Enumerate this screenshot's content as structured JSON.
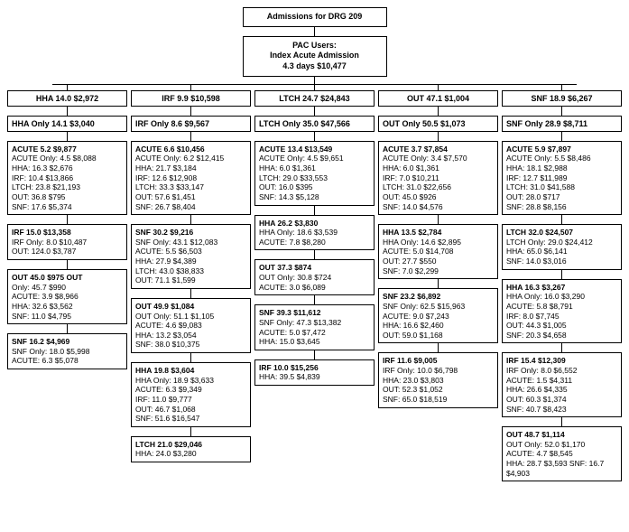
{
  "root": "Admissions for DRG 209",
  "pac": "PAC Users:\nIndex Acute Admission\n4.3 days $10,477",
  "columns": [
    {
      "head": "HHA 14.0 $2,972",
      "only": "HHA Only 14.1 $3,040",
      "boxes": [
        {
          "hdr": "ACUTE 5.2 $9,877",
          "lines": [
            "ACUTE Only: 4.5 $8,088",
            "HHA: 16.3 $2,676",
            "IRF: 10.4 $13,866",
            "LTCH: 23.8 $21,193",
            "OUT: 36.8 $795",
            "SNF: 17.6 $5,374"
          ]
        },
        {
          "hdr": "IRF 15.0 $13,358",
          "lines": [
            "IRF Only: 8.0 $10,487",
            "OUT: 124.0 $3,787"
          ]
        },
        {
          "hdr": "OUT 45.0 $975 OUT",
          "lines": [
            "Only: 45.7 $990",
            "ACUTE: 3.9 $8,966",
            "HHA: 32.6 $3,562",
            "SNF: 11.0 $4,795"
          ]
        },
        {
          "hdr": "SNF 16.2 $4,969",
          "lines": [
            "SNF Only: 18.0 $5,998",
            "ACUTE: 6.3 $5,078"
          ]
        }
      ]
    },
    {
      "head": "IRF 9.9 $10,598",
      "only": "IRF Only 8.6 $9,567",
      "boxes": [
        {
          "hdr": "ACUTE 6.6 $10,456",
          "lines": [
            "ACUTE Only: 6.2 $12,415",
            "HHA: 21.7 $3,184",
            "IRF: 12.6 $12,908",
            "LTCH: 33.3 $33,147",
            "OUT: 57.6 $1,451",
            "SNF: 26.7 $8,404"
          ]
        },
        {
          "hdr": "SNF 30.2 $9,216",
          "lines": [
            "SNF Only: 43.1 $12,083",
            "ACUTE: 5.5 $6,503",
            "HHA: 27.9 $4,389",
            "LTCH: 43.0 $38,833",
            "OUT: 71.1 $1,599"
          ]
        },
        {
          "hdr": "OUT 49.9 $1,084",
          "lines": [
            "OUT Only: 51.1 $1,105",
            "ACUTE: 4.6 $9,083",
            "HHA: 13.2 $3,054",
            "SNF: 38.0 $10,375"
          ]
        },
        {
          "hdr": "HHA 19.8 $3,604",
          "lines": [
            "HHA Only: 18.9 $3,633",
            "ACUTE: 6.3 $9,349",
            "IRF: 11.0 $9,777",
            "OUT: 46.7 $1,068",
            "SNF: 51.6 $16,547"
          ]
        },
        {
          "hdr": "LTCH 21.0 $29,046",
          "lines": [
            "HHA: 24.0 $3,280"
          ]
        }
      ]
    },
    {
      "head": "LTCH 24.7 $24,843",
      "only": "LTCH Only 35.0 $47,566",
      "boxes": [
        {
          "hdr": "ACUTE 13.4 $13,549",
          "lines": [
            "ACUTE Only: 4.5 $9,651",
            "HHA: 6.0 $1,361",
            "LTCH: 29.0 $33,553",
            "OUT: 16.0 $395",
            "SNF: 14.3 $5,128"
          ]
        },
        {
          "hdr": "HHA 26.2 $3,830",
          "lines": [
            "HHA Only: 18.6 $3,539",
            "ACUTE: 7.8 $8,280"
          ]
        },
        {
          "hdr": "OUT 37.3 $874",
          "lines": [
            "OUT Only: 30.8 $724",
            "ACUTE: 3.0 $6,089"
          ]
        },
        {
          "hdr": "SNF 39.3 $11,612",
          "lines": [
            "SNF Only: 47.3 $13,382",
            "ACUTE: 5.0 $7,472",
            "HHA: 15.0 $3,645"
          ]
        },
        {
          "hdr": "IRF 10.0 $15,256",
          "lines": [
            "HHA: 39.5 $4,839"
          ]
        }
      ]
    },
    {
      "head": "OUT 47.1 $1,004",
      "only": "OUT Only 50.5 $1,073",
      "boxes": [
        {
          "hdr": "ACUTE 3.7 $7,854",
          "lines": [
            "ACUTE Only: 3.4 $7,570",
            "HHA: 6.0 $1,361",
            "IRF: 7.0 $10,211",
            "LTCH: 31.0 $22,656",
            "OUT: 45.0 $926",
            "SNF: 14.0 $4,576"
          ]
        },
        {
          "hdr": "HHA 13.5 $2,784",
          "lines": [
            "HHA Only: 14.6 $2,895",
            "ACUTE: 5.0 $14,708",
            "OUT: 27.7 $550",
            "SNF: 7.0 $2,299"
          ]
        },
        {
          "hdr": "SNF 23.2 $6,892",
          "lines": [
            "SNF Only: 62.5 $15,963",
            "ACUTE: 9.0 $7,243",
            "HHA: 16.6 $2,460",
            "OUT: 59.0 $1,168"
          ]
        },
        {
          "hdr": "IRF 11.6 $9,005",
          "lines": [
            "IRF Only: 10.0 $6,798",
            "HHA: 23.0 $3,803",
            "OUT: 52.3 $1,052",
            "SNF: 65.0 $18,519"
          ]
        }
      ]
    },
    {
      "head": "SNF 18.9 $6,267",
      "only": "SNF Only 28.9 $8,711",
      "boxes": [
        {
          "hdr": "ACUTE 5.9 $7,897",
          "lines": [
            "ACUTE Only: 5.5 $8,486",
            "HHA: 18.1 $2,988",
            "IRF: 12.7 $11,989",
            "LTCH: 31.0 $41,588",
            "OUT: 28.0 $717",
            "SNF: 28.8 $8,156"
          ]
        },
        {
          "hdr": "LTCH 32.0 $24,507",
          "lines": [
            "LTCH Only: 29.0 $24,412",
            "HHA: 65.0 $6,141",
            "SNF: 14.0 $3,016"
          ]
        },
        {
          "hdr": "HHA 16.3 $3,267",
          "lines": [
            "HHA Only: 16.0 $3,290",
            "ACUTE: 5.8 $8,791",
            "IRF: 8.0 $7,745",
            "OUT: 44.3 $1,005",
            "SNF: 20.3 $4,658"
          ]
        },
        {
          "hdr": "IRF 15.4 $12,309",
          "lines": [
            "IRF Only: 8.0 $6,552",
            "ACUTE: 1.5 $4,311",
            "HHA: 26.6 $4,335",
            "OUT: 60.3 $1,374",
            "SNF: 40.7 $8,423"
          ]
        },
        {
          "hdr": "OUT 48.7 $1,114",
          "lines": [
            "OUT Only: 52.0 $1,170",
            "ACUTE: 4.7 $8,545",
            "HHA: 28.7 $3,593 SNF: 16.7 $4,903"
          ]
        }
      ]
    }
  ]
}
